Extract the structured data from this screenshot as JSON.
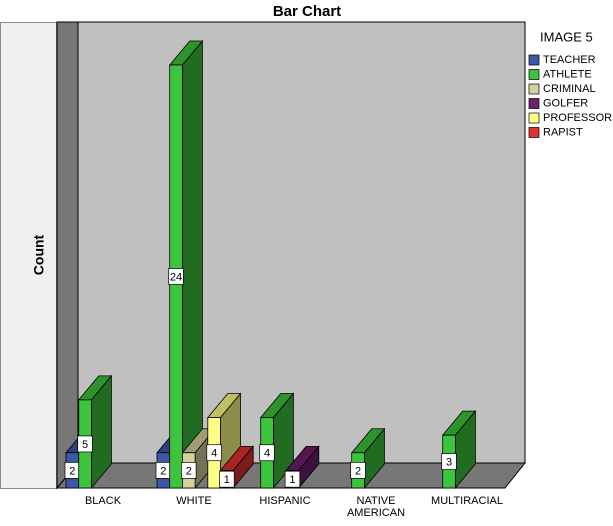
{
  "chart_data": {
    "type": "bar3d",
    "title": "Bar Chart",
    "y_label": "Count",
    "legend_title": "IMAGE 5",
    "categories": [
      "BLACK",
      "WHITE",
      "HISPANIC",
      "NATIVE AMERICAN",
      "MULTIRACIAL"
    ],
    "series": [
      {
        "name": "TEACHER",
        "color": "#3d56a8",
        "values": [
          2,
          2,
          null,
          null,
          null
        ]
      },
      {
        "name": "ATHLETE",
        "color": "#3cc43c",
        "values": [
          5,
          24,
          4,
          2,
          3
        ]
      },
      {
        "name": "CRIMINAL",
        "color": "#d6d09c",
        "values": [
          null,
          2,
          null,
          null,
          null
        ]
      },
      {
        "name": "GOLFER",
        "color": "#6e1f6e",
        "values": [
          null,
          null,
          1,
          null,
          null
        ]
      },
      {
        "name": "PROFESSOR",
        "color": "#ffff88",
        "values": [
          null,
          4,
          null,
          null,
          null
        ]
      },
      {
        "name": "RAPIST",
        "color": "#e33030",
        "values": [
          null,
          1,
          null,
          null,
          null
        ]
      }
    ]
  }
}
